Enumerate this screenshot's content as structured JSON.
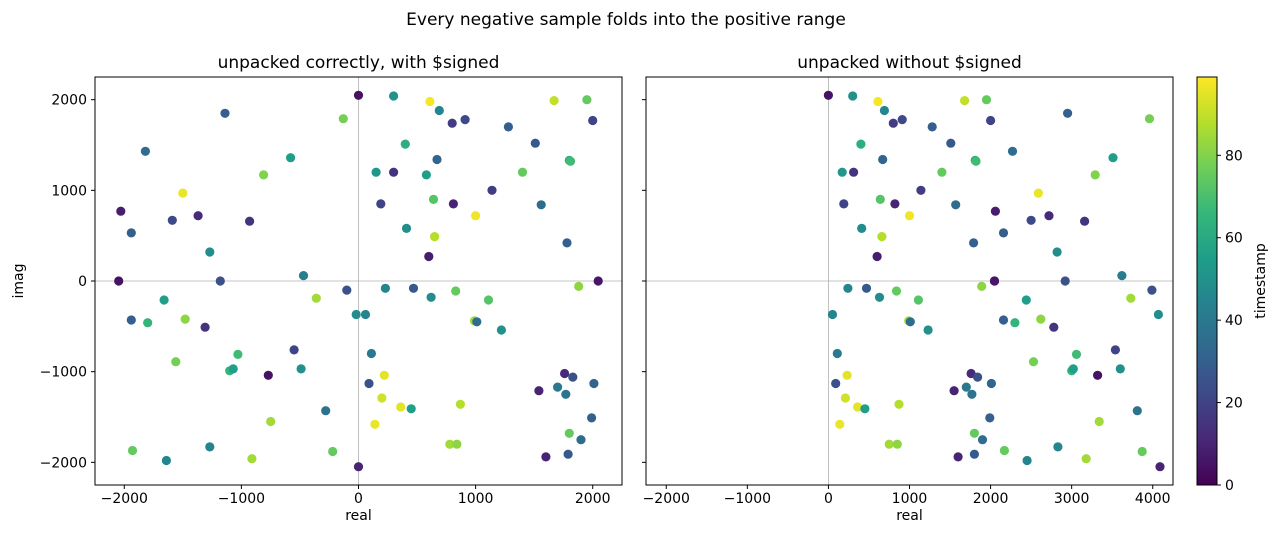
{
  "figure": {
    "suptitle": "Every negative sample folds into the positive range"
  },
  "chart_data": [
    {
      "type": "scatter",
      "title": "unpacked correctly, with $signed",
      "xlabel": "real",
      "ylabel": "imag",
      "xlim": [
        -2250,
        2250
      ],
      "ylim": [
        -2250,
        2250
      ],
      "xticks": [
        -2000,
        -1000,
        0,
        1000,
        2000
      ],
      "yticks": [
        -2000,
        -1000,
        0,
        1000,
        2000
      ],
      "reference_lines": {
        "x": 0,
        "y": 0
      },
      "points": [
        {
          "x": -2048,
          "y": 0,
          "t": 5
        },
        {
          "x": -2030,
          "y": 770,
          "t": 8
        },
        {
          "x": -1940,
          "y": 530,
          "t": 30
        },
        {
          "x": -1940,
          "y": -430,
          "t": 30
        },
        {
          "x": -1930,
          "y": -1870,
          "t": 75
        },
        {
          "x": -1820,
          "y": 1430,
          "t": 35
        },
        {
          "x": -1800,
          "y": -460,
          "t": 65
        },
        {
          "x": -1660,
          "y": -210,
          "t": 55
        },
        {
          "x": -1640,
          "y": -1980,
          "t": 45
        },
        {
          "x": -1590,
          "y": 670,
          "t": 22
        },
        {
          "x": -1560,
          "y": -890,
          "t": 78
        },
        {
          "x": -1500,
          "y": 970,
          "t": 96
        },
        {
          "x": -1480,
          "y": -420,
          "t": 82
        },
        {
          "x": -1370,
          "y": 720,
          "t": 12
        },
        {
          "x": -1310,
          "y": -510,
          "t": 15
        },
        {
          "x": -1270,
          "y": 320,
          "t": 48
        },
        {
          "x": -1270,
          "y": -1830,
          "t": 45
        },
        {
          "x": -1180,
          "y": 0,
          "t": 25
        },
        {
          "x": -1140,
          "y": 1850,
          "t": 30
        },
        {
          "x": -1100,
          "y": -990,
          "t": 65
        },
        {
          "x": -1070,
          "y": -970,
          "t": 55
        },
        {
          "x": -1030,
          "y": -810,
          "t": 68
        },
        {
          "x": -930,
          "y": 660,
          "t": 15
        },
        {
          "x": -910,
          "y": -1960,
          "t": 85
        },
        {
          "x": -810,
          "y": 1170,
          "t": 80
        },
        {
          "x": -770,
          "y": -1040,
          "t": 5
        },
        {
          "x": -750,
          "y": -1550,
          "t": 85
        },
        {
          "x": -580,
          "y": 1360,
          "t": 55
        },
        {
          "x": -550,
          "y": -760,
          "t": 20
        },
        {
          "x": -490,
          "y": -970,
          "t": 50
        },
        {
          "x": -470,
          "y": 60,
          "t": 42
        },
        {
          "x": -360,
          "y": -190,
          "t": 85
        },
        {
          "x": -280,
          "y": -1430,
          "t": 38
        },
        {
          "x": -220,
          "y": -1880,
          "t": 75
        },
        {
          "x": -130,
          "y": 1790,
          "t": 78
        },
        {
          "x": -100,
          "y": -100,
          "t": 25
        },
        {
          "x": -20,
          "y": -370,
          "t": 48
        },
        {
          "x": 0,
          "y": 2048,
          "t": 5
        },
        {
          "x": 0,
          "y": -2048,
          "t": 10
        },
        {
          "x": 60,
          "y": -370,
          "t": 45
        },
        {
          "x": 90,
          "y": -1130,
          "t": 25
        },
        {
          "x": 110,
          "y": -800,
          "t": 40
        },
        {
          "x": 140,
          "y": -1580,
          "t": 96
        },
        {
          "x": 150,
          "y": 1200,
          "t": 52
        },
        {
          "x": 190,
          "y": 850,
          "t": 20
        },
        {
          "x": 200,
          "y": -1290,
          "t": 92
        },
        {
          "x": 220,
          "y": -1040,
          "t": 95
        },
        {
          "x": 230,
          "y": -80,
          "t": 45
        },
        {
          "x": 300,
          "y": 2040,
          "t": 50
        },
        {
          "x": 300,
          "y": 1200,
          "t": 15
        },
        {
          "x": 360,
          "y": -1390,
          "t": 95
        },
        {
          "x": 400,
          "y": 1510,
          "t": 62
        },
        {
          "x": 410,
          "y": 580,
          "t": 48
        },
        {
          "x": 450,
          "y": -1410,
          "t": 55
        },
        {
          "x": 470,
          "y": -80,
          "t": 28
        },
        {
          "x": 580,
          "y": 1170,
          "t": 55
        },
        {
          "x": 600,
          "y": 270,
          "t": 8
        },
        {
          "x": 610,
          "y": 1980,
          "t": 98
        },
        {
          "x": 620,
          "y": -180,
          "t": 48
        },
        {
          "x": 640,
          "y": 900,
          "t": 72
        },
        {
          "x": 650,
          "y": 490,
          "t": 88
        },
        {
          "x": 670,
          "y": 1340,
          "t": 32
        },
        {
          "x": 690,
          "y": 1880,
          "t": 45
        },
        {
          "x": 780,
          "y": -1800,
          "t": 85
        },
        {
          "x": 800,
          "y": 1740,
          "t": 18
        },
        {
          "x": 810,
          "y": 850,
          "t": 10
        },
        {
          "x": 830,
          "y": -110,
          "t": 75
        },
        {
          "x": 840,
          "y": -1800,
          "t": 82
        },
        {
          "x": 870,
          "y": -1360,
          "t": 88
        },
        {
          "x": 910,
          "y": 1780,
          "t": 22
        },
        {
          "x": 990,
          "y": -440,
          "t": 85
        },
        {
          "x": 1000,
          "y": 720,
          "t": 97
        },
        {
          "x": 1010,
          "y": -450,
          "t": 35
        },
        {
          "x": 1110,
          "y": -210,
          "t": 72
        },
        {
          "x": 1140,
          "y": 1000,
          "t": 18
        },
        {
          "x": 1220,
          "y": -540,
          "t": 50
        },
        {
          "x": 1280,
          "y": 1700,
          "t": 30
        },
        {
          "x": 1400,
          "y": 1200,
          "t": 75
        },
        {
          "x": 1510,
          "y": 1520,
          "t": 28
        },
        {
          "x": 1540,
          "y": -1210,
          "t": 10
        },
        {
          "x": 1560,
          "y": 840,
          "t": 35
        },
        {
          "x": 1600,
          "y": -1940,
          "t": 10
        },
        {
          "x": 1670,
          "y": 1990,
          "t": 90
        },
        {
          "x": 1700,
          "y": -1170,
          "t": 40
        },
        {
          "x": 1760,
          "y": -1020,
          "t": 12
        },
        {
          "x": 1770,
          "y": -1250,
          "t": 38
        },
        {
          "x": 1780,
          "y": 420,
          "t": 30
        },
        {
          "x": 1790,
          "y": -1910,
          "t": 28
        },
        {
          "x": 1800,
          "y": 1330,
          "t": 62
        },
        {
          "x": 1810,
          "y": 1320,
          "t": 68
        },
        {
          "x": 1800,
          "y": -1680,
          "t": 75
        },
        {
          "x": 1830,
          "y": -1060,
          "t": 25
        },
        {
          "x": 1880,
          "y": -60,
          "t": 82
        },
        {
          "x": 1900,
          "y": -1750,
          "t": 35
        },
        {
          "x": 1950,
          "y": 2000,
          "t": 75
        },
        {
          "x": 1990,
          "y": -1510,
          "t": 30
        },
        {
          "x": 2000,
          "y": 1770,
          "t": 20
        },
        {
          "x": 2010,
          "y": -1130,
          "t": 32
        },
        {
          "x": 2047,
          "y": 0,
          "t": 6
        }
      ]
    },
    {
      "type": "scatter",
      "title": "unpacked without $signed",
      "xlabel": "real",
      "ylabel": "",
      "xlim": [
        -2250,
        4250
      ],
      "ylim": [
        -2250,
        2250
      ],
      "xticks": [
        -2000,
        -1000,
        0,
        1000,
        2000,
        3000,
        4000
      ],
      "yticks": [
        -2000,
        -1000,
        0,
        1000,
        2000
      ],
      "reference_lines": {
        "x": 0,
        "y": 0
      },
      "points": [
        {
          "x": 0,
          "y": 2048,
          "t": 5
        },
        {
          "x": 50,
          "y": -370,
          "t": 45
        },
        {
          "x": 90,
          "y": -1130,
          "t": 25
        },
        {
          "x": 110,
          "y": -800,
          "t": 40
        },
        {
          "x": 140,
          "y": -1580,
          "t": 96
        },
        {
          "x": 170,
          "y": 1200,
          "t": 52
        },
        {
          "x": 190,
          "y": 850,
          "t": 20
        },
        {
          "x": 210,
          "y": -1290,
          "t": 92
        },
        {
          "x": 230,
          "y": -1040,
          "t": 95
        },
        {
          "x": 240,
          "y": -80,
          "t": 45
        },
        {
          "x": 300,
          "y": 2040,
          "t": 50
        },
        {
          "x": 310,
          "y": 1200,
          "t": 15
        },
        {
          "x": 360,
          "y": -1390,
          "t": 95
        },
        {
          "x": 400,
          "y": 1510,
          "t": 62
        },
        {
          "x": 410,
          "y": 580,
          "t": 48
        },
        {
          "x": 450,
          "y": -1410,
          "t": 55
        },
        {
          "x": 470,
          "y": -80,
          "t": 28
        },
        {
          "x": 600,
          "y": 270,
          "t": 8
        },
        {
          "x": 610,
          "y": 1980,
          "t": 98
        },
        {
          "x": 630,
          "y": -180,
          "t": 48
        },
        {
          "x": 640,
          "y": 900,
          "t": 72
        },
        {
          "x": 660,
          "y": 490,
          "t": 88
        },
        {
          "x": 670,
          "y": 1340,
          "t": 32
        },
        {
          "x": 690,
          "y": 1880,
          "t": 45
        },
        {
          "x": 750,
          "y": -1800,
          "t": 85
        },
        {
          "x": 800,
          "y": 1740,
          "t": 18
        },
        {
          "x": 820,
          "y": 850,
          "t": 10
        },
        {
          "x": 840,
          "y": -110,
          "t": 75
        },
        {
          "x": 850,
          "y": -1800,
          "t": 82
        },
        {
          "x": 870,
          "y": -1360,
          "t": 88
        },
        {
          "x": 910,
          "y": 1780,
          "t": 22
        },
        {
          "x": 990,
          "y": -440,
          "t": 85
        },
        {
          "x": 1000,
          "y": 720,
          "t": 97
        },
        {
          "x": 1010,
          "y": -450,
          "t": 35
        },
        {
          "x": 1110,
          "y": -210,
          "t": 72
        },
        {
          "x": 1140,
          "y": 1000,
          "t": 18
        },
        {
          "x": 1230,
          "y": -540,
          "t": 50
        },
        {
          "x": 1280,
          "y": 1700,
          "t": 30
        },
        {
          "x": 1400,
          "y": 1200,
          "t": 75
        },
        {
          "x": 1510,
          "y": 1520,
          "t": 28
        },
        {
          "x": 1550,
          "y": -1210,
          "t": 10
        },
        {
          "x": 1570,
          "y": 840,
          "t": 35
        },
        {
          "x": 1600,
          "y": -1940,
          "t": 10
        },
        {
          "x": 1680,
          "y": 1990,
          "t": 90
        },
        {
          "x": 1700,
          "y": -1170,
          "t": 40
        },
        {
          "x": 1760,
          "y": -1020,
          "t": 12
        },
        {
          "x": 1770,
          "y": -1250,
          "t": 38
        },
        {
          "x": 1790,
          "y": 420,
          "t": 30
        },
        {
          "x": 1800,
          "y": -1910,
          "t": 28
        },
        {
          "x": 1810,
          "y": 1330,
          "t": 62
        },
        {
          "x": 1820,
          "y": 1320,
          "t": 68
        },
        {
          "x": 1800,
          "y": -1680,
          "t": 75
        },
        {
          "x": 1840,
          "y": -1060,
          "t": 25
        },
        {
          "x": 1890,
          "y": -60,
          "t": 82
        },
        {
          "x": 1900,
          "y": -1750,
          "t": 35
        },
        {
          "x": 1950,
          "y": 2000,
          "t": 75
        },
        {
          "x": 1990,
          "y": -1510,
          "t": 30
        },
        {
          "x": 2000,
          "y": 1770,
          "t": 20
        },
        {
          "x": 2010,
          "y": -1130,
          "t": 32
        },
        {
          "x": 2048,
          "y": 0,
          "t": 5
        },
        {
          "x": 2048,
          "y": 0,
          "t": 6
        },
        {
          "x": 2060,
          "y": 770,
          "t": 8
        },
        {
          "x": 2160,
          "y": 530,
          "t": 30
        },
        {
          "x": 2160,
          "y": -430,
          "t": 30
        },
        {
          "x": 2170,
          "y": -1870,
          "t": 75
        },
        {
          "x": 2270,
          "y": 1430,
          "t": 35
        },
        {
          "x": 2300,
          "y": -460,
          "t": 65
        },
        {
          "x": 2440,
          "y": -210,
          "t": 55
        },
        {
          "x": 2450,
          "y": -1980,
          "t": 45
        },
        {
          "x": 2500,
          "y": 670,
          "t": 22
        },
        {
          "x": 2530,
          "y": -890,
          "t": 78
        },
        {
          "x": 2590,
          "y": 970,
          "t": 96
        },
        {
          "x": 2620,
          "y": -420,
          "t": 82
        },
        {
          "x": 2720,
          "y": 720,
          "t": 12
        },
        {
          "x": 2780,
          "y": -510,
          "t": 15
        },
        {
          "x": 2820,
          "y": 320,
          "t": 48
        },
        {
          "x": 2830,
          "y": -1830,
          "t": 45
        },
        {
          "x": 2920,
          "y": 0,
          "t": 25
        },
        {
          "x": 2950,
          "y": 1850,
          "t": 30
        },
        {
          "x": 3000,
          "y": -990,
          "t": 65
        },
        {
          "x": 3020,
          "y": -970,
          "t": 55
        },
        {
          "x": 3060,
          "y": -810,
          "t": 68
        },
        {
          "x": 3160,
          "y": 660,
          "t": 15
        },
        {
          "x": 3180,
          "y": -1960,
          "t": 85
        },
        {
          "x": 3290,
          "y": 1170,
          "t": 80
        },
        {
          "x": 3320,
          "y": -1040,
          "t": 5
        },
        {
          "x": 3340,
          "y": -1550,
          "t": 85
        },
        {
          "x": 3510,
          "y": 1360,
          "t": 55
        },
        {
          "x": 3540,
          "y": -760,
          "t": 20
        },
        {
          "x": 3600,
          "y": -970,
          "t": 50
        },
        {
          "x": 3620,
          "y": 60,
          "t": 42
        },
        {
          "x": 3730,
          "y": -190,
          "t": 85
        },
        {
          "x": 3810,
          "y": -1430,
          "t": 38
        },
        {
          "x": 3870,
          "y": -1880,
          "t": 75
        },
        {
          "x": 3960,
          "y": 1790,
          "t": 78
        },
        {
          "x": 3990,
          "y": -100,
          "t": 25
        },
        {
          "x": 4070,
          "y": -370,
          "t": 48
        },
        {
          "x": 4090,
          "y": -2048,
          "t": 10
        }
      ]
    }
  ],
  "colorbar": {
    "label": "timestamp",
    "range": [
      0,
      99
    ],
    "ticks": [
      0,
      20,
      40,
      60,
      80
    ],
    "colormap": "viridis"
  }
}
